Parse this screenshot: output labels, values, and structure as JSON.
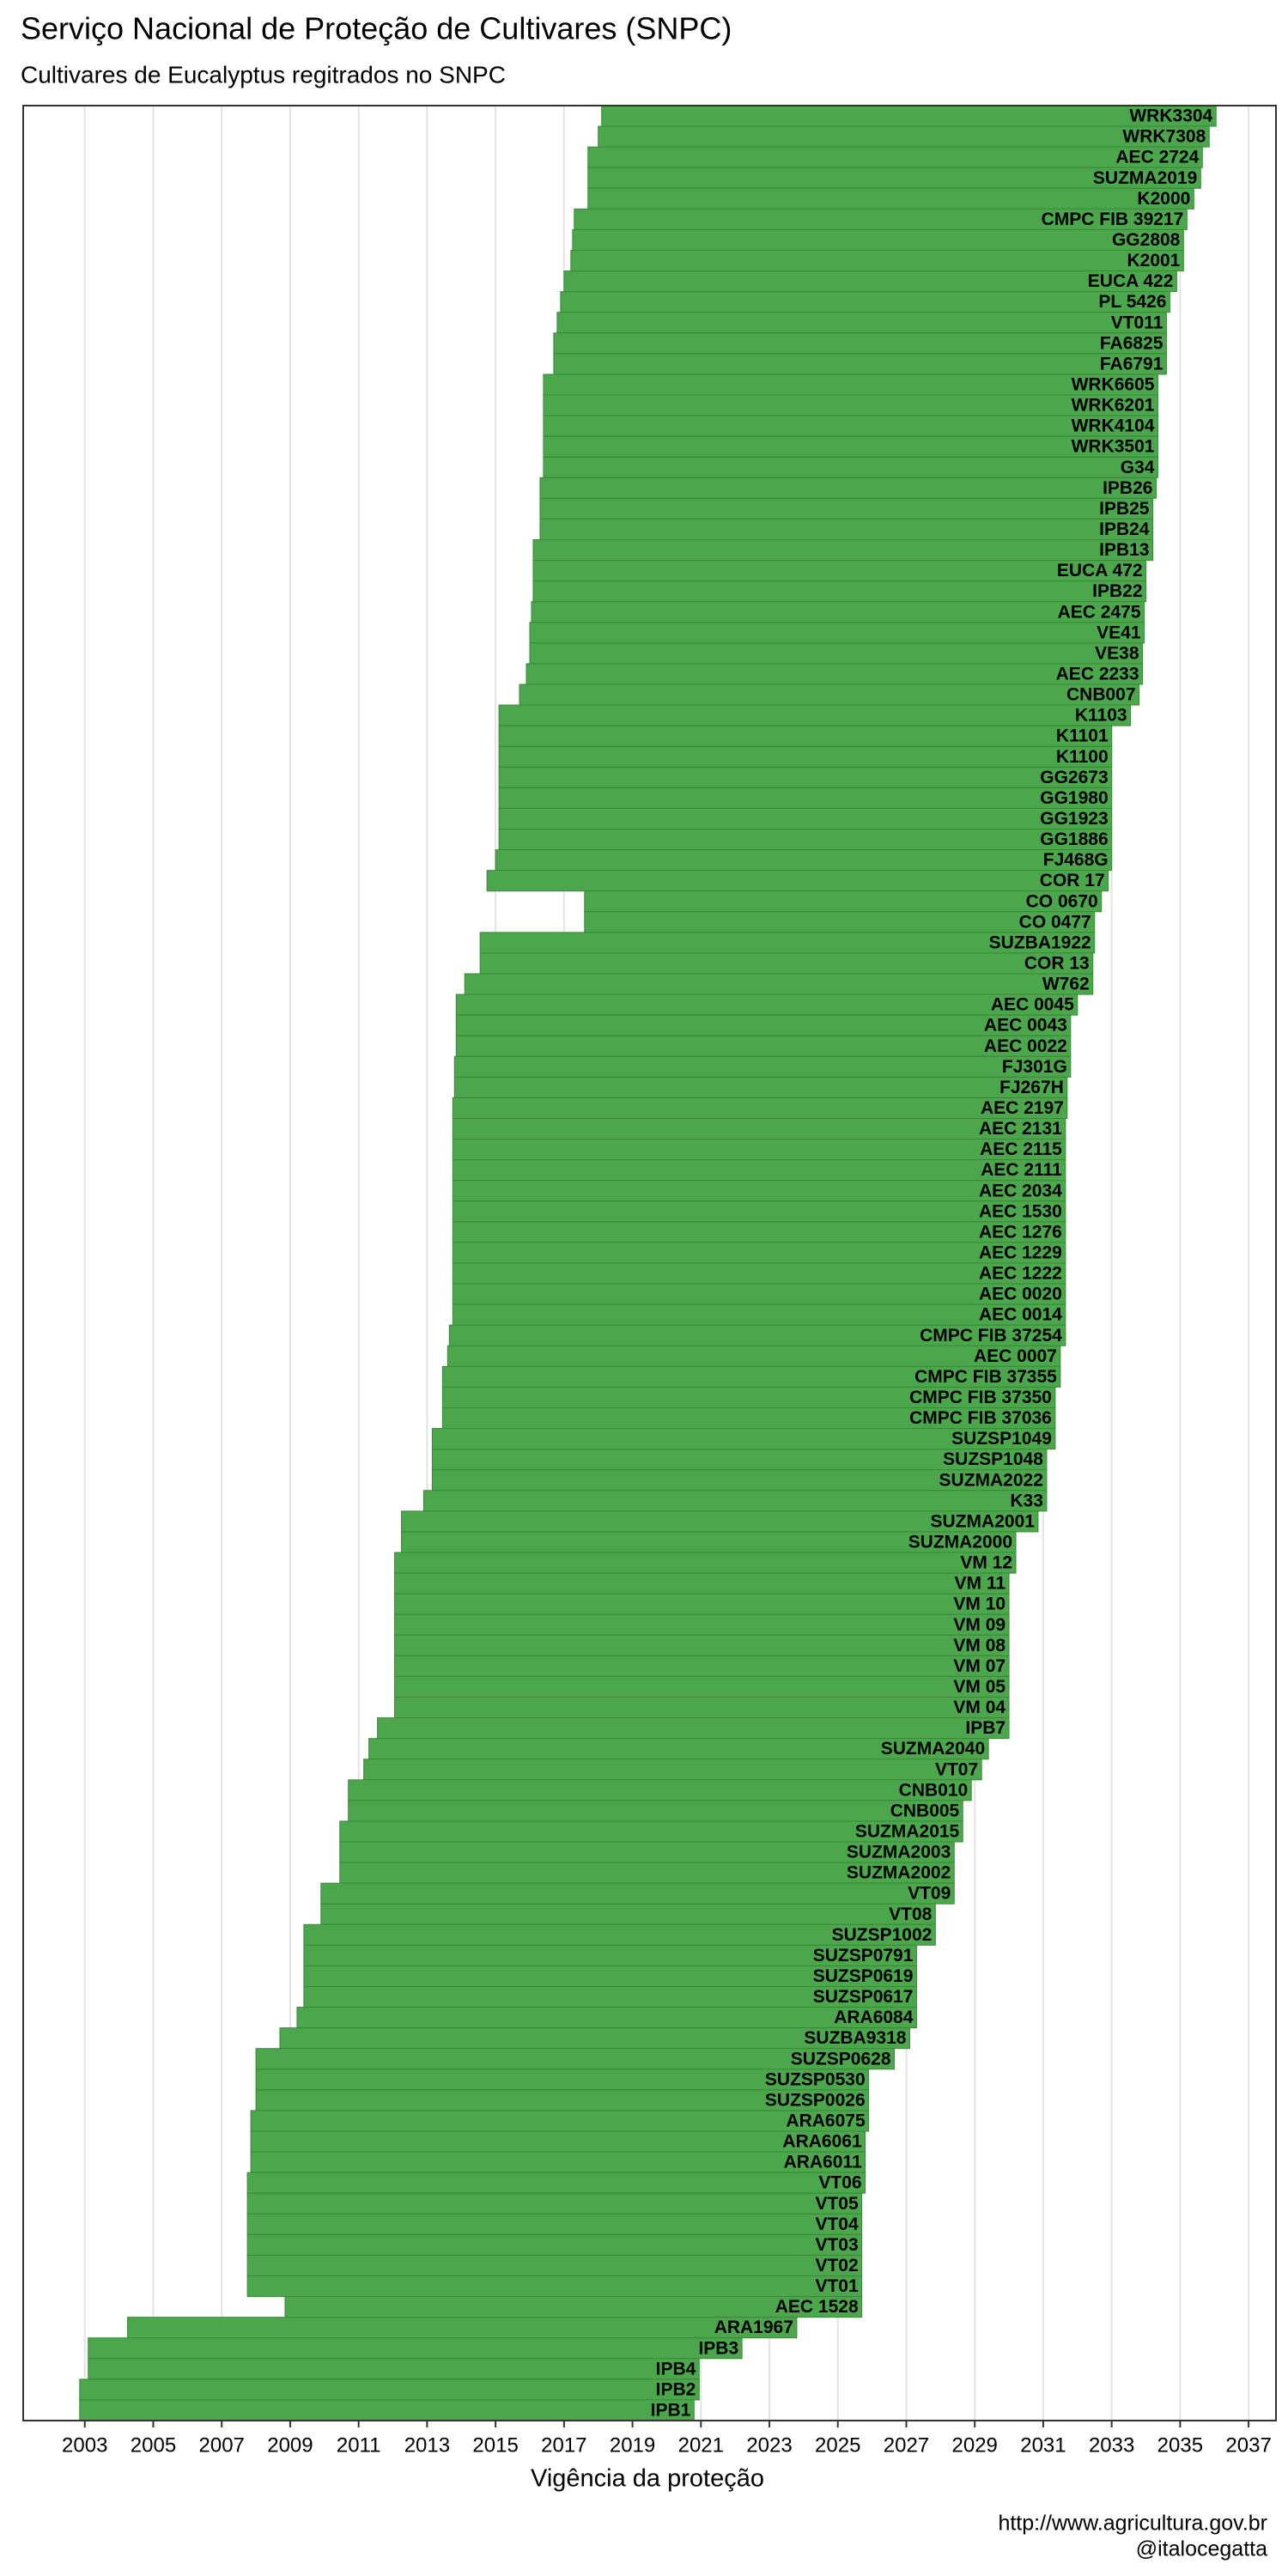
{
  "chart_data": {
    "type": "gantt",
    "title": "Serviço Nacional de Proteção de Cultivares (SNPC)",
    "subtitle": "Cultivares de Eucalyptus regitrados no SNPC",
    "x_label": "Vigência da proteção",
    "caption": [
      "http://www.agricultura.gov.br",
      "@italocegatta"
    ],
    "color": "#4ca64c",
    "grid": true,
    "xlim": [
      2001.2,
      2037.8
    ],
    "xticks": [
      2003,
      2005,
      2007,
      2009,
      2011,
      2013,
      2015,
      2017,
      2019,
      2021,
      2023,
      2025,
      2027,
      2029,
      2031,
      2033,
      2035,
      2037
    ],
    "categories": [
      "WRK3304",
      "WRK7308",
      "AEC 2724",
      "SUZMA2019",
      "K2000",
      "CMPC FIB 39217",
      "GG2808",
      "K2001",
      "EUCA 422",
      "PL 5426",
      "VT011",
      "FA6825",
      "FA6791",
      "WRK6605",
      "WRK6201",
      "WRK4104",
      "WRK3501",
      "G34",
      "IPB26",
      "IPB25",
      "IPB24",
      "IPB13",
      "EUCA 472",
      "IPB22",
      "AEC 2475",
      "VE41",
      "VE38",
      "AEC 2233",
      "CNB007",
      "K1103",
      "K1101",
      "K1100",
      "GG2673",
      "GG1980",
      "GG1923",
      "GG1886",
      "FJ468G",
      "COR 17",
      "CO 0670",
      "CO 0477",
      "SUZBA1922",
      "COR 13",
      "W762",
      "AEC 0045",
      "AEC 0043",
      "AEC 0022",
      "FJ301G",
      "FJ267H",
      "AEC 2197",
      "AEC 2131",
      "AEC 2115",
      "AEC 2111",
      "AEC 2034",
      "AEC 1530",
      "AEC 1276",
      "AEC 1229",
      "AEC 1222",
      "AEC 0020",
      "AEC 0014",
      "CMPC FIB 37254",
      "AEC 0007",
      "CMPC FIB 37355",
      "CMPC FIB 37350",
      "CMPC FIB 37036",
      "SUZSP1049",
      "SUZSP1048",
      "SUZMA2022",
      "K33",
      "SUZMA2001",
      "SUZMA2000",
      "VM 12",
      "VM 11",
      "VM 10",
      "VM 09",
      "VM 08",
      "VM 07",
      "VM 05",
      "VM 04",
      "IPB7",
      "SUZMA2040",
      "VT07",
      "CNB010",
      "CNB005",
      "SUZMA2015",
      "SUZMA2003",
      "SUZMA2002",
      "VT09",
      "VT08",
      "SUZSP1002",
      "SUZSP0791",
      "SUZSP0619",
      "SUZSP0617",
      "ARA6084",
      "SUZBA9318",
      "SUZSP0628",
      "SUZSP0530",
      "SUZSP0026",
      "ARA6075",
      "ARA6061",
      "ARA6011",
      "VT06",
      "VT05",
      "VT04",
      "VT03",
      "VT02",
      "VT01",
      "AEC 1528",
      "ARA1967",
      "IPB3",
      "IPB4",
      "IPB2",
      "IPB1"
    ],
    "start": [
      2018.1,
      2018.0,
      2017.7,
      2017.7,
      2017.7,
      2017.3,
      2017.25,
      2017.2,
      2017.0,
      2016.9,
      2016.8,
      2016.7,
      2016.7,
      2016.4,
      2016.4,
      2016.4,
      2016.4,
      2016.4,
      2016.3,
      2016.3,
      2016.3,
      2016.1,
      2016.1,
      2016.1,
      2016.05,
      2016.0,
      2016.0,
      2015.9,
      2015.7,
      2015.1,
      2015.1,
      2015.1,
      2015.1,
      2015.1,
      2015.1,
      2015.1,
      2015.0,
      2014.75,
      2017.6,
      2017.6,
      2014.55,
      2014.55,
      2014.1,
      2013.85,
      2013.85,
      2013.85,
      2013.8,
      2013.8,
      2013.75,
      2013.75,
      2013.75,
      2013.75,
      2013.75,
      2013.75,
      2013.75,
      2013.75,
      2013.75,
      2013.75,
      2013.75,
      2013.65,
      2013.6,
      2013.45,
      2013.45,
      2013.45,
      2013.15,
      2013.15,
      2013.15,
      2012.9,
      2012.25,
      2012.25,
      2012.05,
      2012.05,
      2012.05,
      2012.05,
      2012.05,
      2012.05,
      2012.05,
      2012.05,
      2011.55,
      2011.3,
      2011.15,
      2010.7,
      2010.7,
      2010.45,
      2010.45,
      2010.45,
      2009.9,
      2009.9,
      2009.4,
      2009.4,
      2009.4,
      2009.4,
      2009.2,
      2008.7,
      2008.0,
      2008.0,
      2008.0,
      2007.85,
      2007.85,
      2007.85,
      2007.75,
      2007.75,
      2007.75,
      2007.75,
      2007.75,
      2007.75,
      2008.85,
      2004.25,
      2003.1,
      2003.1,
      2002.85,
      2002.85
    ],
    "end": [
      2036.05,
      2035.85,
      2035.65,
      2035.6,
      2035.4,
      2035.2,
      2035.1,
      2035.1,
      2034.9,
      2034.7,
      2034.6,
      2034.6,
      2034.6,
      2034.35,
      2034.35,
      2034.35,
      2034.35,
      2034.35,
      2034.3,
      2034.2,
      2034.2,
      2034.2,
      2034.0,
      2034.0,
      2033.95,
      2033.95,
      2033.9,
      2033.9,
      2033.8,
      2033.55,
      2033.0,
      2033.0,
      2033.0,
      2033.0,
      2033.0,
      2033.0,
      2033.0,
      2032.9,
      2032.7,
      2032.5,
      2032.5,
      2032.45,
      2032.45,
      2032.0,
      2031.8,
      2031.8,
      2031.8,
      2031.7,
      2031.7,
      2031.65,
      2031.65,
      2031.65,
      2031.65,
      2031.65,
      2031.65,
      2031.65,
      2031.65,
      2031.65,
      2031.65,
      2031.65,
      2031.5,
      2031.5,
      2031.35,
      2031.35,
      2031.35,
      2031.1,
      2031.1,
      2031.1,
      2030.85,
      2030.2,
      2030.2,
      2030.0,
      2030.0,
      2030.0,
      2030.0,
      2030.0,
      2030.0,
      2030.0,
      2030.0,
      2029.4,
      2029.2,
      2028.9,
      2028.65,
      2028.65,
      2028.4,
      2028.4,
      2028.4,
      2027.85,
      2027.85,
      2027.3,
      2027.3,
      2027.3,
      2027.3,
      2027.1,
      2026.65,
      2025.9,
      2025.9,
      2025.9,
      2025.8,
      2025.8,
      2025.8,
      2025.7,
      2025.7,
      2025.7,
      2025.7,
      2025.7,
      2025.7,
      2023.8,
      2022.2,
      2020.95,
      2020.95,
      2020.8,
      2020.8
    ]
  }
}
